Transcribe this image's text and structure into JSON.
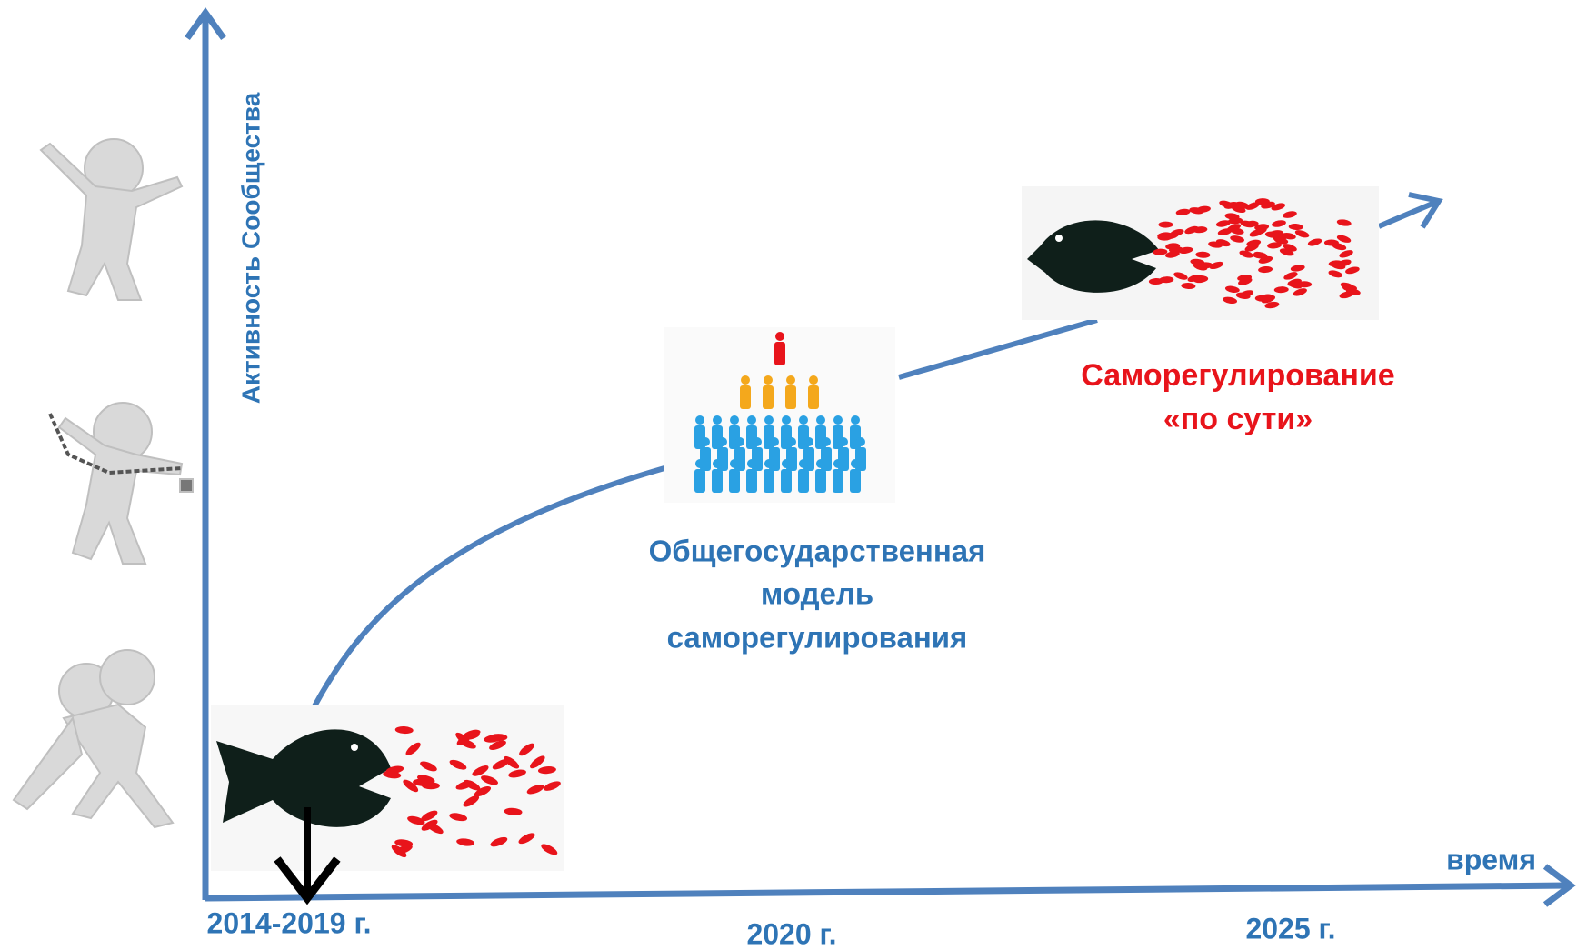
{
  "axes": {
    "y_label": "Активность Сообщества",
    "x_label": "время"
  },
  "timeline": [
    "2014-2019 г.",
    "2020 г.",
    "2025 г."
  ],
  "stages": [
    {
      "lines": [
        "Общегосударственная",
        "модель",
        "саморегулирования"
      ]
    },
    {
      "lines": [
        "Саморегулирование",
        "«по сути»"
      ]
    }
  ]
}
